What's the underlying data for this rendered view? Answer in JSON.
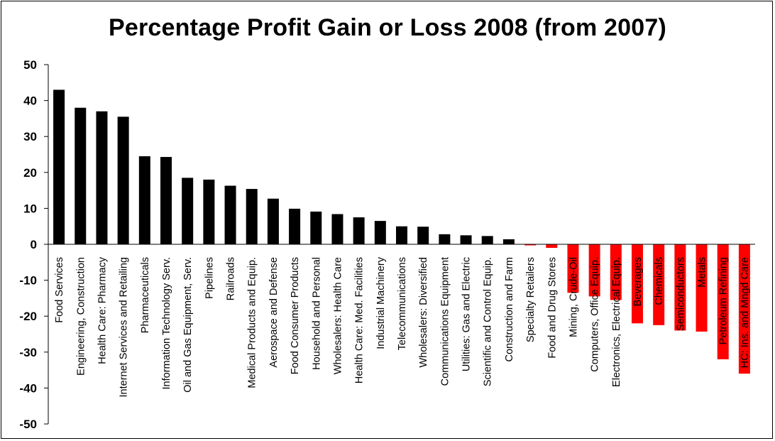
{
  "chart_data": {
    "type": "bar",
    "title": "Percentage Profit Gain or Loss 2008 (from 2007)",
    "xlabel": "",
    "ylabel": "",
    "ylim": [
      -50,
      50
    ],
    "yticks": [
      50,
      40,
      30,
      20,
      10,
      0,
      -10,
      -20,
      -30,
      -40,
      -50
    ],
    "grid": false,
    "legend": "none",
    "colors": {
      "positive": "#000000",
      "negative": "#ff0000"
    },
    "categories": [
      "Food Services",
      "Engineering, Construction",
      "Health Care: Pharmacy",
      "Internet Services and Retailing",
      "Pharmaceuticals",
      "Information Technology Serv.",
      "Oil and Gas Equipment, Serv.",
      "Pipelines",
      "Railroads",
      "Medical Products and Equip.",
      "Aerospace and Defense",
      "Food Consumer Products",
      "Household and Personal",
      "Wholesalers: Health Care",
      "Health Care: Med. Facilities",
      "Industrial Machinery",
      "Telecommunications",
      "Wholesalers: Diversified",
      "Communications Equipment",
      "Utilities: Gas and Electric",
      "Scientific and Control Equip.",
      "Construction and Farm",
      "Specialty Retailers",
      "Food and Drug Stores",
      "Mining, Crude-Oil",
      "Computers, Office Equip.",
      "Electronics, Electrical Equip.",
      "Beverages",
      "Chemicals",
      "Semiconductors",
      "Metals",
      "Petroleum Refining",
      "HC: Ins. and Mngd Care"
    ],
    "values": [
      43,
      38,
      37,
      35.5,
      24.5,
      24.3,
      18.5,
      18,
      16.3,
      15.4,
      12.7,
      9.9,
      9.1,
      8.4,
      7.5,
      6.5,
      5,
      4.9,
      2.8,
      2.5,
      2.3,
      1.4,
      -0.3,
      -1,
      -13.5,
      -14.5,
      -15.5,
      -22,
      -22.5,
      -24,
      -24.3,
      -32,
      -36
    ]
  }
}
